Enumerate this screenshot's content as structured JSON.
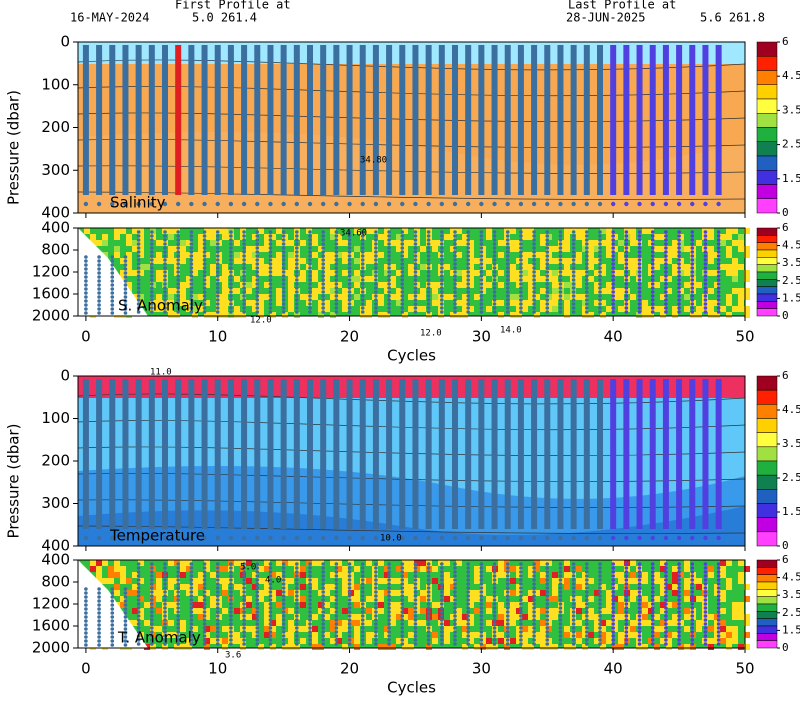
{
  "header": {
    "first_title": "First Profile at",
    "first_date": "16-MAY-2024",
    "first_pos": "5.0 261.4",
    "last_title": "Last Profile at",
    "last_date": "28-JUN-2025",
    "last_pos": "5.6 261.8"
  },
  "chart_data": [
    {
      "type": "heatmap",
      "label": "Salinity",
      "y_label": "Pressure (dbar)",
      "xlim": [
        -0.6,
        50
      ],
      "xticks": [
        0,
        10,
        20,
        30,
        40,
        50
      ],
      "ylim": [
        0,
        400
      ],
      "yticks": [
        0,
        100,
        200,
        300,
        400
      ],
      "colorbar_ticks": [
        6,
        4.5,
        3.5,
        2.5,
        1.5,
        0
      ],
      "annotations": [
        "34.80"
      ]
    },
    {
      "type": "heatmap",
      "label": "S. Anomaly",
      "x_label": "Cycles",
      "xlim": [
        -0.6,
        50
      ],
      "xticks": [
        0,
        10,
        20,
        30,
        40,
        50
      ],
      "ylim": [
        400,
        2000
      ],
      "yticks": [
        400,
        800,
        1200,
        1600,
        2000
      ],
      "colorbar_ticks": [
        6,
        4.5,
        3.5,
        2.5,
        1.5,
        0
      ],
      "annotations": [
        "34.60"
      ]
    },
    {
      "type": "heatmap",
      "label": "Temperature",
      "y_label": "Pressure (dbar)",
      "xlim": [
        -0.6,
        50
      ],
      "xticks": [
        0,
        10,
        20,
        30,
        40,
        50
      ],
      "ylim": [
        0,
        400
      ],
      "yticks": [
        0,
        100,
        200,
        300,
        400
      ],
      "colorbar_ticks": [
        6,
        4.5,
        3.5,
        2.5,
        1.5,
        0
      ],
      "annotations": [
        "14.0",
        "12.0",
        "12.0",
        "11.0",
        "10.0"
      ]
    },
    {
      "type": "heatmap",
      "label": "T. Anomaly",
      "x_label": "Cycles",
      "xlim": [
        -0.6,
        50
      ],
      "xticks": [
        0,
        10,
        20,
        30,
        40,
        50
      ],
      "ylim": [
        400,
        2000
      ],
      "yticks": [
        400,
        800,
        1200,
        1600,
        2000
      ],
      "colorbar_ticks": [
        6,
        4.5,
        3.5,
        2.5,
        1.5,
        0
      ],
      "annotations": [
        "5.0",
        "4.0",
        "3.6"
      ]
    }
  ]
}
